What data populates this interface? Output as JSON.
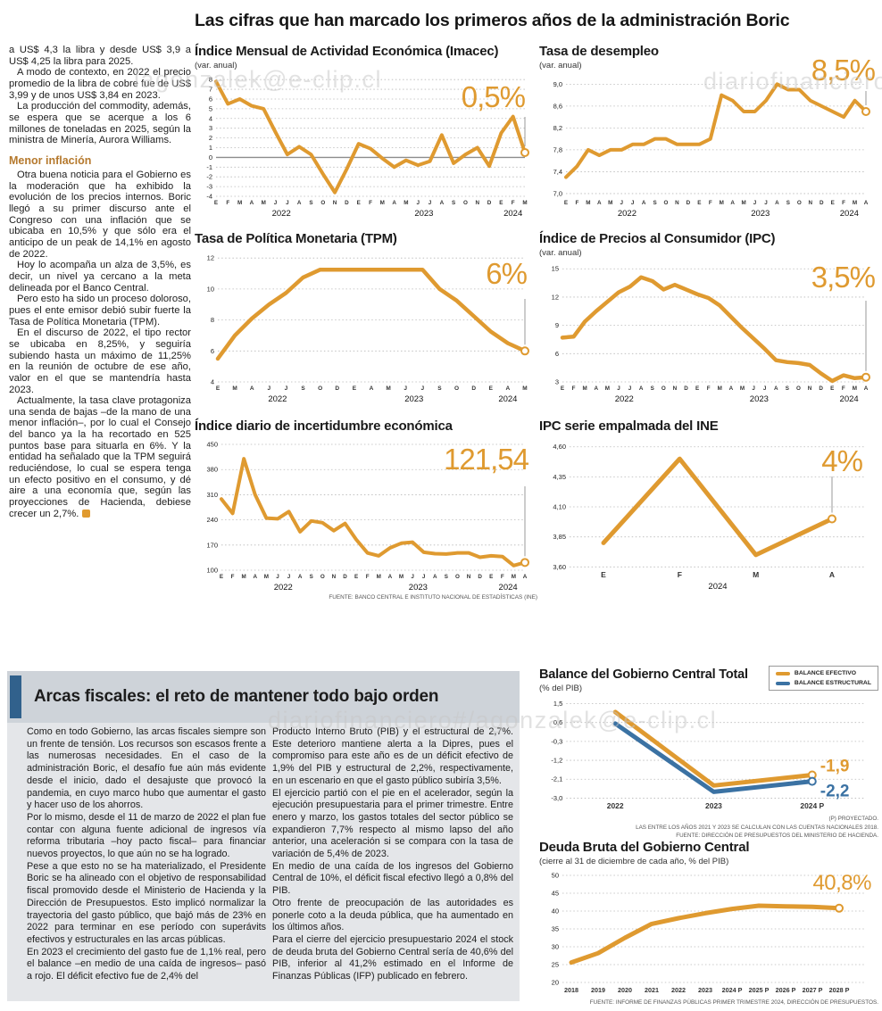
{
  "watermarks": [
    "lagonzalek@e-clip.cl",
    "diariofinanciero",
    "diariofinanciero#/agonzalek@e-clip.cl"
  ],
  "main_title": "Las cifras que han marcado los primeros años de la administración Boric",
  "article_left": {
    "paragraphs": [
      "a US$ 4,3 la libra y desde US$ 3,9 a US$ 4,25 la libra para 2025.",
      "A modo de contexto, en 2022 el precio promedio de la libra de cobre fue de US$ 3,99 y de unos US$ 3,84 en 2023.",
      "La producción del commodity, además, se espera que se acerque a los 6 millones de toneladas en 2025, según la ministra de Minería, Aurora Williams."
    ],
    "subhead": "Menor inflación",
    "paragraphs2": [
      "Otra buena noticia para el Gobierno es la moderación que ha exhibido la evolución de los precios internos. Boric llegó a su primer discurso ante el Congreso con una inflación que se ubicaba en 10,5% y que sólo era el anticipo de un peak de 14,1% en agosto de 2022.",
      "Hoy lo acompaña un alza de 3,5%, es decir, un nivel ya cercano a la meta delineada por el Banco Central.",
      "Pero esto ha sido un proceso doloroso, pues el ente emisor debió subir fuerte la Tasa de Política Monetaria (TPM).",
      "En el discurso de 2022, el tipo rector se ubicaba en 8,25%, y seguiría subiendo hasta un máximo de 11,25% en la reunión de octubre de ese año, valor en el que se mantendría hasta 2023.",
      "Actualmente, la tasa clave protagoniza una senda de bajas –de la mano de una menor inflación–, por lo cual el Consejo del banco ya la ha recortado en 525 puntos base para situarla en 6%. Y la entidad ha señalado que la TPM seguirá reduciéndose, lo cual se espera tenga un efecto positivo en el consumo, y dé aire a una economía que, según las proyecciones de Hacienda, debiese crecer un 2,7%."
    ]
  },
  "chart_data": [
    {
      "type": "line",
      "title": "Índice Mensual de Actividad Económica (Imacec)",
      "subtitle": "(var. anual)",
      "big_label": "0,5%",
      "ylim": [
        -4,
        8.2
      ],
      "yticks": [
        "8",
        "7",
        "6",
        "5",
        "4",
        "3",
        "2",
        "1",
        "0",
        "-1",
        "-2",
        "-3",
        "-4"
      ],
      "zero_line": true,
      "x_labels": [
        "E",
        "F",
        "M",
        "A",
        "M",
        "J",
        "J",
        "A",
        "S",
        "O",
        "N",
        "D",
        "E",
        "F",
        "M",
        "A",
        "M",
        "J",
        "J",
        "A",
        "S",
        "O",
        "N",
        "D",
        "E",
        "F",
        "M"
      ],
      "years": [
        {
          "label": "2022",
          "at": 5.5
        },
        {
          "label": "2023",
          "at": 17.5
        },
        {
          "label": "2024",
          "at": 25
        }
      ],
      "series": [
        {
          "name": "Imacec",
          "color": "#df9a30",
          "end_circle": true,
          "values": [
            7.8,
            5.5,
            6.0,
            5.3,
            5.0,
            2.6,
            0.3,
            1.1,
            0.3,
            -1.7,
            -3.6,
            -1.2,
            1.4,
            0.9,
            -0.1,
            -1.0,
            -0.3,
            -0.8,
            -0.4,
            2.3,
            -0.6,
            0.3,
            1.0,
            -0.9,
            2.5,
            4.2,
            0.5
          ]
        }
      ]
    },
    {
      "type": "line",
      "title": "Tasa de desempleo",
      "subtitle": "(var. anual)",
      "big_label": "8,5%",
      "ylim": [
        6.95,
        9.12
      ],
      "yticks": [
        "9,0",
        "8,6",
        "8,2",
        "7,8",
        "7,4",
        "7,0"
      ],
      "x_labels": [
        "E",
        "F",
        "M",
        "A",
        "M",
        "J",
        "J",
        "A",
        "S",
        "O",
        "N",
        "D",
        "E",
        "F",
        "M",
        "A",
        "M",
        "J",
        "J",
        "A",
        "S",
        "O",
        "N",
        "D",
        "E",
        "F",
        "M",
        "A"
      ],
      "years": [
        {
          "label": "2022",
          "at": 5.5
        },
        {
          "label": "2023",
          "at": 17.5
        },
        {
          "label": "2024",
          "at": 25.5
        }
      ],
      "series": [
        {
          "name": "Tasa de desempleo",
          "color": "#df9a30",
          "end_circle": true,
          "values": [
            7.3,
            7.5,
            7.8,
            7.7,
            7.8,
            7.8,
            7.9,
            7.9,
            8.0,
            8.0,
            7.9,
            7.9,
            7.9,
            8.0,
            8.8,
            8.7,
            8.5,
            8.5,
            8.7,
            9.0,
            8.9,
            8.9,
            8.7,
            8.6,
            8.5,
            8.4,
            8.7,
            8.5
          ]
        }
      ]
    },
    {
      "type": "line",
      "title": "Tasa de Política Monetaria (TPM)",
      "big_label": "6%",
      "ylim": [
        4,
        12.3
      ],
      "yticks": [
        "12",
        "10",
        "8",
        "6",
        "4"
      ],
      "x_labels": [
        "E",
        "M",
        "A",
        "J",
        "J",
        "S",
        "O",
        "D",
        "E",
        "A",
        "M",
        "J",
        "J",
        "S",
        "O",
        "D",
        "E",
        "A",
        "M"
      ],
      "years": [
        {
          "label": "2022",
          "at": 3.5
        },
        {
          "label": "2023",
          "at": 11.5
        },
        {
          "label": "2024",
          "at": 17
        }
      ],
      "series": [
        {
          "name": "TPM",
          "color": "#df9a30",
          "end_circle": true,
          "values": [
            5.5,
            7.0,
            8.1,
            9.0,
            9.75,
            10.75,
            11.25,
            11.25,
            11.25,
            11.25,
            11.25,
            11.25,
            11.25,
            10.0,
            9.25,
            8.25,
            7.25,
            6.5,
            6.0
          ]
        }
      ]
    },
    {
      "type": "line",
      "title": "Índice de Precios al Consumidor (IPC)",
      "subtitle": "(var. anual)",
      "big_label": "3,5%",
      "ylim": [
        3,
        15.4
      ],
      "yticks": [
        "15",
        "12",
        "9",
        "6",
        "3"
      ],
      "x_labels": [
        "E",
        "F",
        "M",
        "A",
        "M",
        "J",
        "J",
        "A",
        "S",
        "O",
        "N",
        "D",
        "E",
        "F",
        "M",
        "A",
        "M",
        "J",
        "J",
        "A",
        "S",
        "O",
        "N",
        "D",
        "E",
        "F",
        "M",
        "A"
      ],
      "years": [
        {
          "label": "2022",
          "at": 5.5
        },
        {
          "label": "2023",
          "at": 17.5
        },
        {
          "label": "2024",
          "at": 25.5
        }
      ],
      "series": [
        {
          "name": "IPC",
          "color": "#df9a30",
          "end_circle": true,
          "values": [
            7.7,
            7.8,
            9.4,
            10.5,
            11.5,
            12.5,
            13.1,
            14.1,
            13.7,
            12.8,
            13.3,
            12.8,
            12.3,
            11.9,
            11.1,
            9.9,
            8.7,
            7.6,
            6.5,
            5.3,
            5.1,
            5.0,
            4.8,
            3.9,
            3.1,
            3.7,
            3.4,
            3.5
          ]
        }
      ]
    },
    {
      "type": "line",
      "title": "Índice diario de incertidumbre económica",
      "big_label": "121,54",
      "ylim": [
        100,
        460
      ],
      "yticks": [
        "450",
        "380",
        "310",
        "240",
        "170",
        "100"
      ],
      "x_labels": [
        "E",
        "F",
        "M",
        "A",
        "M",
        "J",
        "J",
        "A",
        "S",
        "O",
        "N",
        "D",
        "E",
        "F",
        "M",
        "A",
        "M",
        "J",
        "J",
        "A",
        "S",
        "O",
        "N",
        "D",
        "E",
        "F",
        "M",
        "A"
      ],
      "years": [
        {
          "label": "2022",
          "at": 5.5
        },
        {
          "label": "2023",
          "at": 17.5
        },
        {
          "label": "2024",
          "at": 25.5
        }
      ],
      "series": [
        {
          "name": "Incertidumbre económica",
          "color": "#df9a30",
          "end_circle": true,
          "values": [
            298,
            258,
            410,
            310,
            245,
            243,
            263,
            207,
            237,
            232,
            210,
            230,
            185,
            148,
            140,
            162,
            175,
            178,
            150,
            146,
            145,
            148,
            148,
            136,
            140,
            138,
            113,
            121.54
          ]
        }
      ],
      "source": "FUENTE: BANCO CENTRAL E INSTITUTO NACIONAL DE ESTADÍSTICAS (INE)"
    },
    {
      "type": "line",
      "title": "IPC serie empalmada del INE",
      "big_label": "4%",
      "ylim": [
        3.58,
        4.65
      ],
      "yticks": [
        "4,60",
        "4,35",
        "4,10",
        "3,85",
        "3,60"
      ],
      "x_labels": [
        "E",
        "F",
        "M",
        "A"
      ],
      "years": [
        {
          "label": "2024",
          "at": 1.5
        }
      ],
      "series": [
        {
          "name": "IPC serie empalmada",
          "color": "#df9a30",
          "end_circle": true,
          "values": [
            3.8,
            4.5,
            3.7,
            4.0
          ]
        }
      ]
    },
    {
      "type": "line",
      "title": "Balance del Gobierno Central Total",
      "subtitle": "(% del PIB)",
      "ylim": [
        -3.1,
        1.65
      ],
      "yticks": [
        "1,5",
        "0,6",
        "-0,3",
        "-1,2",
        "-2,1",
        "-3,0"
      ],
      "x_labels": [
        "2022",
        "2023",
        "2024 P"
      ],
      "series": [
        {
          "name": "BALANCE EFECTIVO",
          "color": "#df9a30",
          "end_circle": true,
          "end_label": "-1,9",
          "values": [
            1.1,
            -2.4,
            -1.9
          ]
        },
        {
          "name": "BALANCE ESTRUCTURAL",
          "color": "#3b72a3",
          "end_circle": true,
          "end_label": "-2,2",
          "values": [
            0.55,
            -2.7,
            -2.2
          ]
        }
      ],
      "footnotes": [
        "(P) PROYECTADO.",
        "LAS ENTRE LOS AÑOS 2021 Y 2023 SE CALCULAN CON LAS CUENTAS NACIONALES 2018.",
        "FUENTE: DIRECCIÓN DE PRESUPUESTOS DEL MINISTERIO DE HACIENDA."
      ]
    },
    {
      "type": "line",
      "title": "Deuda Bruta del Gobierno Central",
      "subtitle": "(cierre al 31 de diciembre de cada año, % del PIB)",
      "big_label": "40,8%",
      "ylim": [
        19.5,
        50.5
      ],
      "yticks": [
        "50",
        "45",
        "40",
        "35",
        "30",
        "25",
        "20"
      ],
      "x_labels": [
        "2018",
        "2019",
        "2020",
        "2021",
        "2022",
        "2023",
        "2024 P",
        "2025 P",
        "2026 P",
        "2027 P",
        "2028 P"
      ],
      "series": [
        {
          "name": "Deuda bruta",
          "color": "#df9a30",
          "end_circle": true,
          "values": [
            25.6,
            28.2,
            32.5,
            36.4,
            38.0,
            39.4,
            40.6,
            41.5,
            41.3,
            41.2,
            40.8
          ]
        }
      ],
      "source": "FUENTE: INFORME DE FINANZAS PÚBLICAS PRIMER TRIMESTRE 2024, DIRECCIÓN DE PRESUPUESTOS."
    }
  ],
  "fiscal_box": {
    "headline": "Arcas fiscales: el reto de mantener todo bajo orden",
    "col1": [
      "Como en todo Gobierno, las arcas fiscales siempre son un frente de tensión. Los recursos son escasos frente a las numerosas necesidades. En el caso de la administración Boric, el desafío fue aún más evidente desde el inicio, dado el desajuste que provocó la pandemia, en cuyo marco hubo que aumentar el gasto y hacer uso de los ahorros.",
      "Por lo mismo, desde el 11 de marzo de 2022 el plan fue contar con alguna fuente adicional de ingresos vía reforma tributaria –hoy pacto fiscal– para financiar nuevos proyectos, lo que aún no se ha logrado.",
      "Pese a que esto no se ha materializado, el Presidente Boric se ha alineado con el objetivo de responsabilidad fiscal promovido desde el Ministerio de Hacienda y la Dirección de Presupuestos. Esto implicó normalizar la trayectoria del gasto público, que bajó más de 23% en 2022 para terminar en ese período con superávits efectivos y estructurales en las arcas públicas.",
      "En 2023 el crecimiento del gasto fue de 1,1% real, pero el balance –en medio de una caída de ingresos– pasó a rojo. El déficit efectivo fue de 2,4% del"
    ],
    "col2": [
      "Producto Interno Bruto (PIB) y el estructural de 2,7%. Este deterioro mantiene alerta a la Dipres, pues el compromiso para este año es de un déficit efectivo de 1,9% del PIB y estructural de 2,2%, respectivamente, en un escenario en que el gasto público subiría 3,5%.",
      "El ejercicio partió con el pie en el acelerador, según la ejecución presupuestaria para el primer trimestre. Entre enero y marzo, los gastos totales del sector público se expandieron 7,7% respecto al mismo lapso del año anterior, una aceleración si se compara con la tasa de variación de 5,4% de 2023.",
      "En medio de una caída de los ingresos del Gobierno Central de 10%, el déficit fiscal efectivo llegó a 0,8% del PIB.",
      "Otro frente de preocupación de las autoridades es ponerle coto a la deuda pública, que ha aumentado en los últimos años.",
      "Para el cierre del ejercicio presupuestario 2024 el stock de deuda bruta del Gobierno Central sería de 40,6% del PIB, inferior al 41,2% estimado en el Informe de Finanzas Públicas (IFP) publicado en febrero."
    ]
  },
  "colors": {
    "accent_orange": "#df9a30",
    "line_blue": "#3b72a3",
    "bar_blue": "#31618c"
  }
}
